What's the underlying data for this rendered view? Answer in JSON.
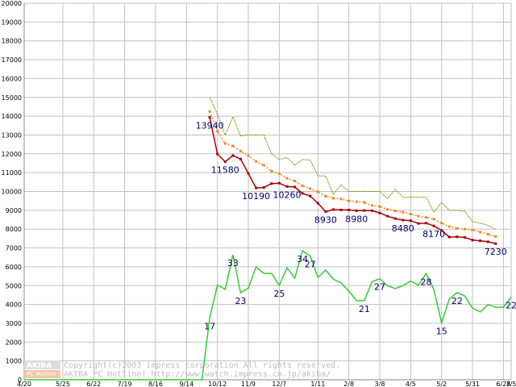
{
  "chart_data": {
    "type": "line",
    "title": "",
    "xlabel": "",
    "ylabel": "",
    "ylim": [
      0,
      20000
    ],
    "grid": true,
    "y_ticks": [
      0,
      1000,
      2000,
      3000,
      4000,
      5000,
      6000,
      7000,
      8000,
      9000,
      10000,
      11000,
      12000,
      13000,
      14000,
      15000,
      16000,
      17000,
      18000,
      19000,
      20000
    ],
    "x_ticks": [
      "4/20",
      "5/25",
      "6/22",
      "7/19",
      "8/16",
      "9/14",
      "10/12",
      "11/9",
      "12/7",
      "1/11",
      "2/8",
      "3/8",
      "4/5",
      "5/2",
      "5/31",
      "6/28",
      "7/5"
    ],
    "x_tick_index": [
      0,
      5,
      9,
      13,
      17,
      21,
      25,
      29,
      33,
      38,
      42,
      46,
      50,
      54,
      58,
      62,
      63
    ],
    "series": [
      {
        "color": "#aa0000",
        "marker": "square",
        "start": 24,
        "values": [
          13940,
          11990,
          11580,
          11910,
          11720,
          10960,
          10190,
          10210,
          10420,
          10440,
          10260,
          10240,
          9900,
          9760,
          9380,
          8930,
          9040,
          9020,
          9020,
          8980,
          8990,
          8980,
          8860,
          8690,
          8560,
          8480,
          8450,
          8300,
          8320,
          8170,
          7930,
          7580,
          7590,
          7560,
          7420,
          7380,
          7330,
          7230
        ]
      },
      {
        "color": "#ee8822",
        "marker": "square",
        "start": 24,
        "values": [
          14250,
          13200,
          12550,
          12420,
          12150,
          11900,
          11600,
          11400,
          11080,
          10950,
          10700,
          10560,
          10300,
          10150,
          9980,
          9750,
          9640,
          9600,
          9500,
          9460,
          9420,
          9260,
          9200,
          9050,
          8970,
          8900,
          8800,
          8690,
          8620,
          8530,
          8320,
          8140,
          8040,
          8000,
          7960,
          7840,
          7730,
          7610
        ]
      },
      {
        "color": "#888800",
        "marker": "none",
        "dashed": true,
        "start": 24,
        "values": [
          15000,
          14100,
          13000,
          13960,
          12950,
          13010,
          13000,
          13000,
          12000,
          11700,
          11800,
          11400,
          11700,
          11670,
          10840,
          10820,
          9850,
          10360,
          10000,
          10000,
          10000,
          10000,
          10000,
          9620,
          10100,
          9700,
          9700,
          9700,
          9700,
          8900,
          9420,
          9000,
          9000,
          8950,
          8400,
          8320,
          8210,
          7980
        ]
      },
      {
        "color": "#33cc33",
        "marker": "none",
        "start": 0,
        "values": [
          0,
          0,
          0,
          0,
          0,
          0,
          0,
          0,
          0,
          0,
          0,
          0,
          0,
          0,
          0,
          0,
          0,
          0,
          0,
          0,
          0,
          0,
          0,
          0,
          3280,
          5030,
          4800,
          6630,
          4620,
          4870,
          5990,
          5650,
          5650,
          5010,
          5950,
          5400,
          6850,
          6580,
          5440,
          5820,
          5340,
          5140,
          4710,
          4200,
          4200,
          5200,
          5370,
          5000,
          4840,
          5000,
          5240,
          5020,
          5640,
          4800,
          3020,
          4300,
          4630,
          4450,
          3800,
          3600,
          3990,
          3850,
          3850,
          4390
        ]
      }
    ],
    "data_labels": [
      {
        "text": "13940",
        "x": 24,
        "y": 13940
      },
      {
        "text": "11580",
        "x": 26,
        "y": 11580
      },
      {
        "text": "10190",
        "x": 30,
        "y": 10190
      },
      {
        "text": "10260",
        "x": 34,
        "y": 10260
      },
      {
        "text": "8930",
        "x": 39,
        "y": 8930
      },
      {
        "text": "8980",
        "x": 43,
        "y": 8980
      },
      {
        "text": "8480",
        "x": 49,
        "y": 8480
      },
      {
        "text": "8170",
        "x": 53,
        "y": 8170
      },
      {
        "text": "7230",
        "x": 61,
        "y": 7230
      },
      {
        "text": "17",
        "x": 24,
        "y": 3280
      },
      {
        "text": "33",
        "x": 27,
        "y": 6630
      },
      {
        "text": "23",
        "x": 28,
        "y": 4620
      },
      {
        "text": "25",
        "x": 33,
        "y": 5010
      },
      {
        "text": "34",
        "x": 36,
        "y": 6850
      },
      {
        "text": "27",
        "x": 37,
        "y": 6580
      },
      {
        "text": "21",
        "x": 44,
        "y": 4200
      },
      {
        "text": "27",
        "x": 46,
        "y": 5370
      },
      {
        "text": "28",
        "x": 52,
        "y": 5640
      },
      {
        "text": "15",
        "x": 54,
        "y": 3020
      },
      {
        "text": "22",
        "x": 56,
        "y": 4630
      },
      {
        "text": "22",
        "x": 63,
        "y": 4390
      }
    ]
  },
  "watermark": {
    "logo_top": "AKIBA",
    "logo_bottom": "PC Hotline",
    "line1": "Copyright(c)2003 impress corporation All rights reserved.",
    "line2": "AKIBA PC Hotline! http://www.watch.impress.co.jp/akiba/"
  },
  "colors": {
    "grid": "#c0c0c0",
    "axis": "#888888",
    "label_text": "#000066",
    "background": "#ffffff"
  }
}
